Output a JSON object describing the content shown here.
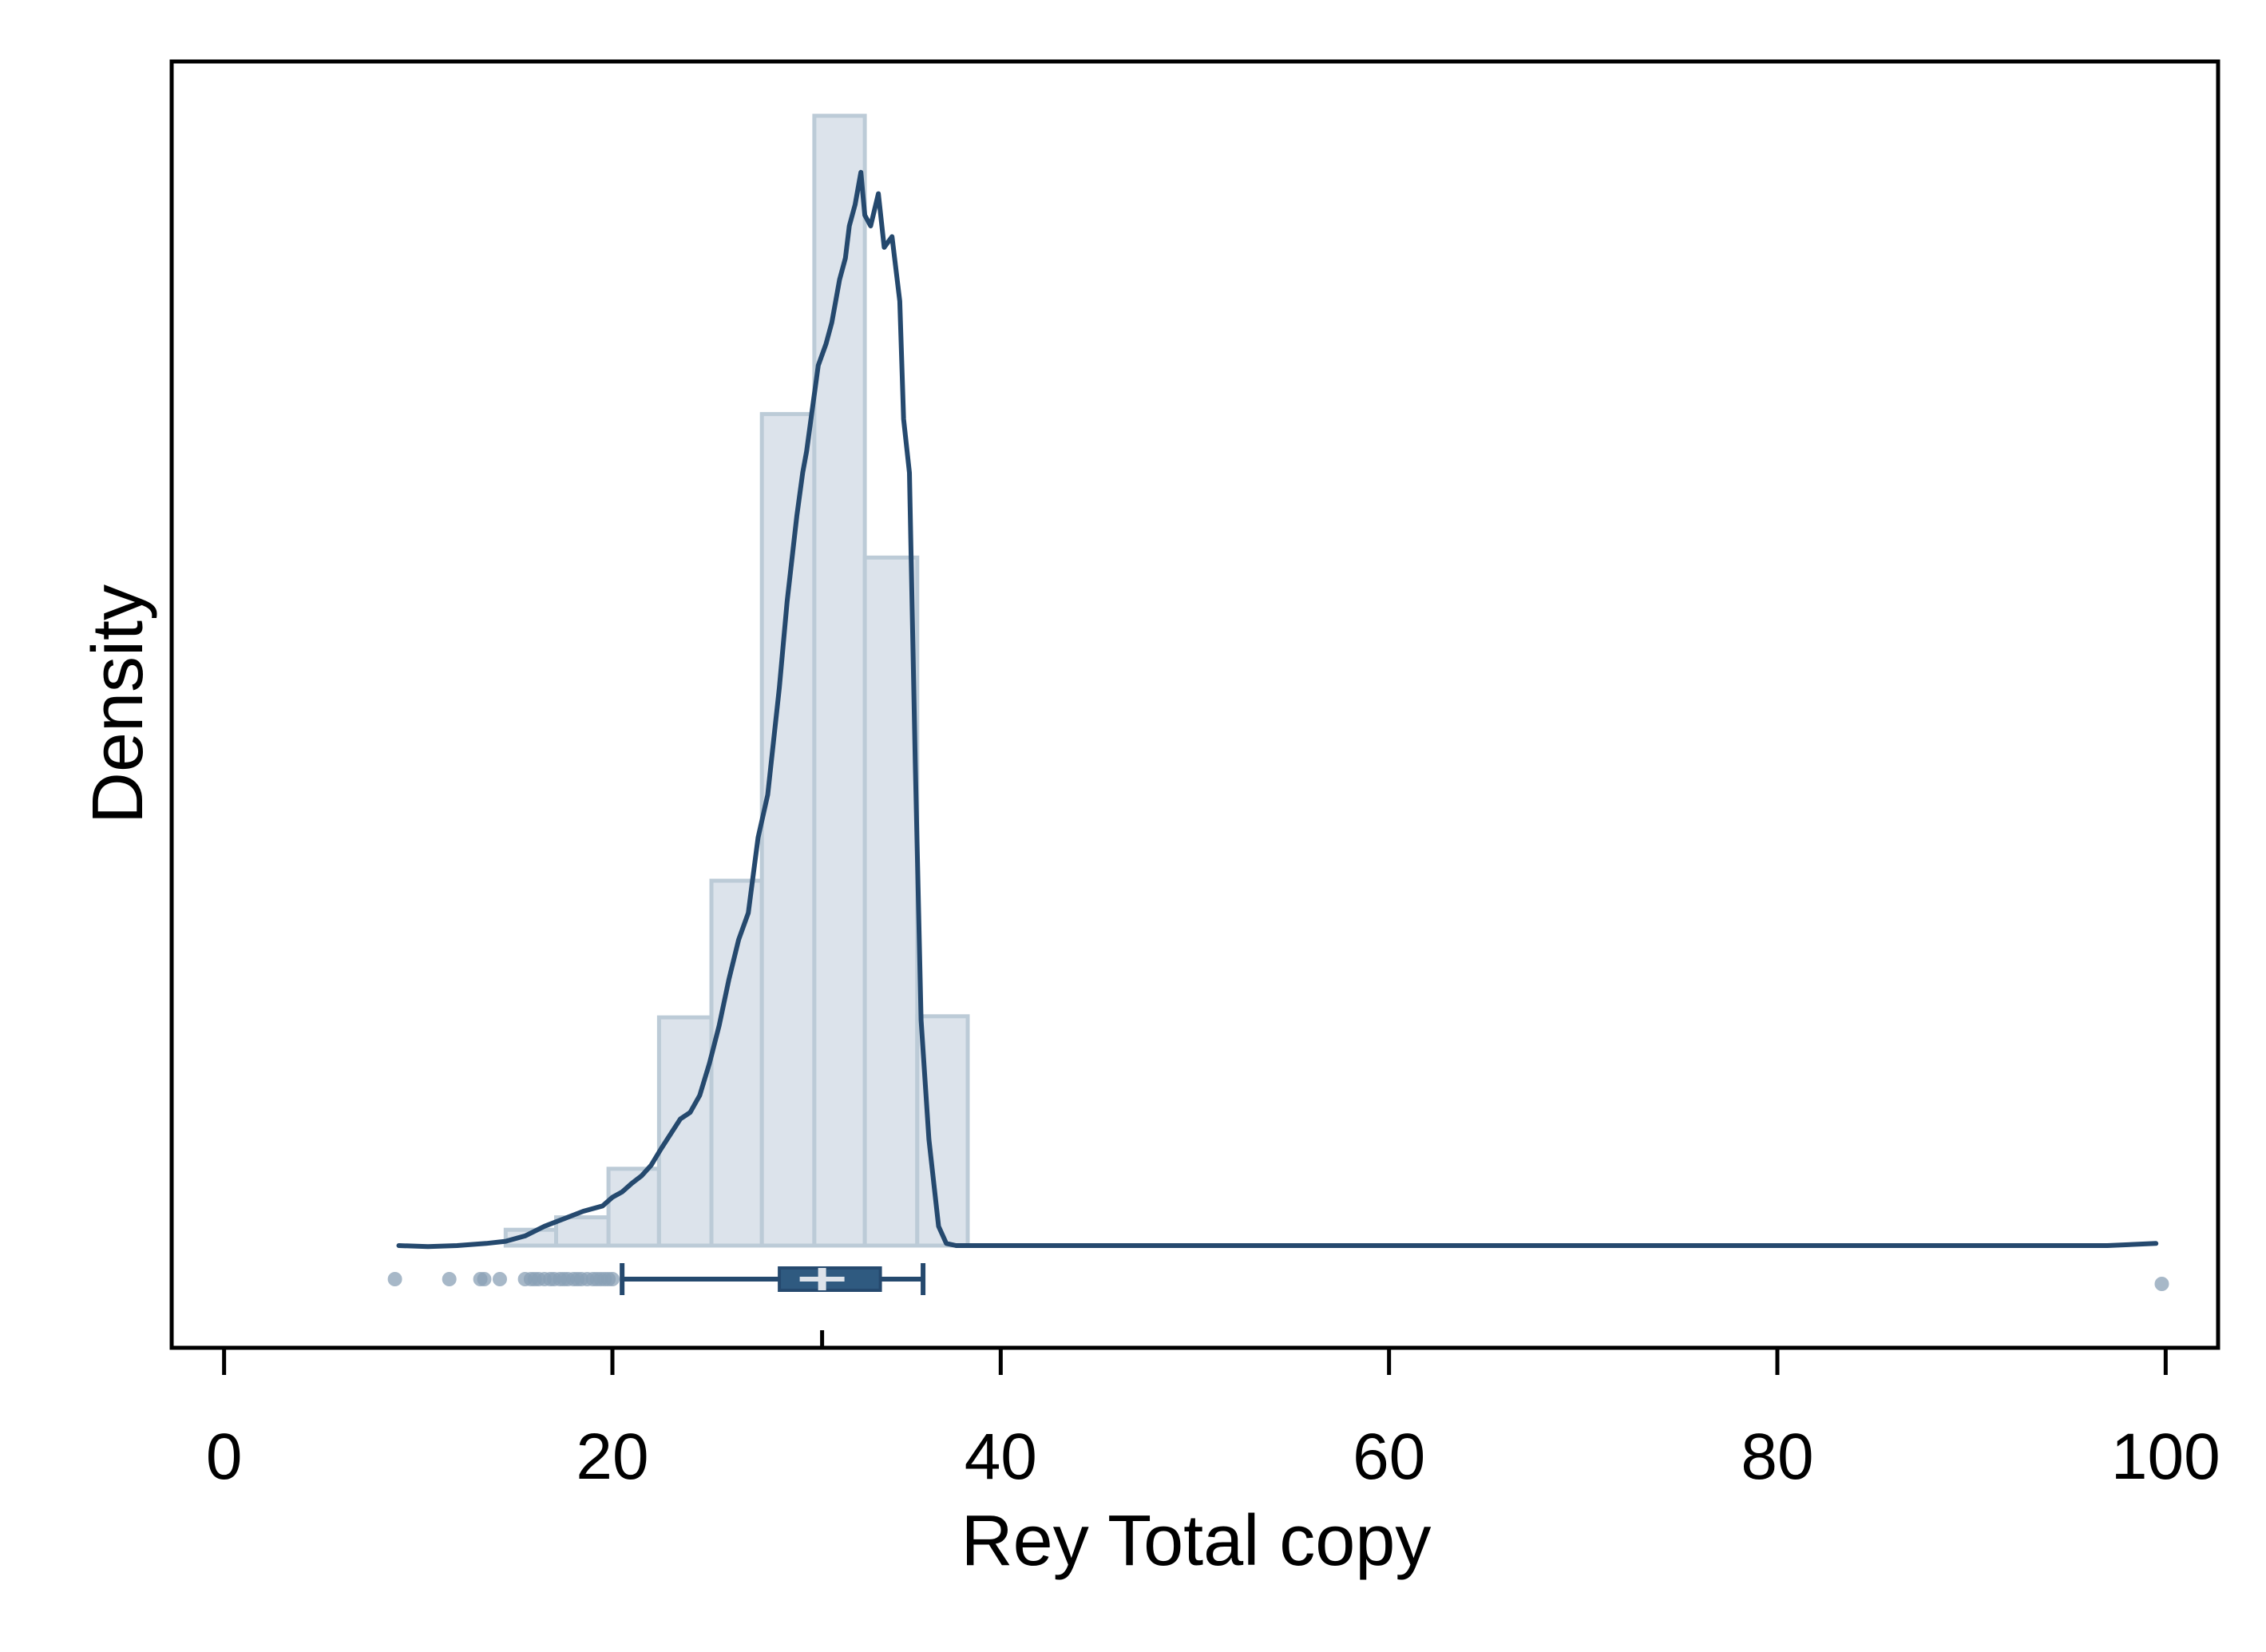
{
  "chart_data": {
    "type": "histogram",
    "xlabel": "Rey Total copy",
    "ylabel": "Density",
    "xlim": [
      -2.7,
      102.7
    ],
    "x_ticks": [
      0,
      20,
      40,
      60,
      80,
      100
    ],
    "x_tick_labels": [
      "0",
      "20",
      "40",
      "60",
      "80",
      "100"
    ],
    "y_ticks": [],
    "grid": false,
    "legend": "none",
    "colors": {
      "bar_fill": "#dce3eb",
      "bar_edge": "#bccbd7",
      "line": "#25496e",
      "box_fill": "#2f5a80",
      "median": "#dde3ea",
      "outlier": "#8aa0b5"
    },
    "histogram": {
      "bin_edges": [
        14.5,
        17.1,
        19.8,
        22.4,
        25.1,
        27.7,
        30.4,
        33.0,
        35.7,
        38.3
      ],
      "relative_heights": [
        0.014,
        0.025,
        0.068,
        0.202,
        0.323,
        0.736,
        1.0,
        0.609,
        0.203
      ]
    },
    "density_curve": {
      "x": [
        9.0,
        10.5,
        12.0,
        13.5,
        14.5,
        15.5,
        16.5,
        17.5,
        18.5,
        19.5,
        20.0,
        20.5,
        21.0,
        21.5,
        22.0,
        22.5,
        23.0,
        23.5,
        24.0,
        24.5,
        25.0,
        25.5,
        26.0,
        26.5,
        27.0,
        27.5,
        28.0,
        28.3,
        28.6,
        29.0,
        29.5,
        29.8,
        30.0,
        30.3,
        30.6,
        31.0,
        31.3,
        31.7,
        32.0,
        32.2,
        32.5,
        32.8,
        33.0,
        33.3,
        33.7,
        34.0,
        34.4,
        34.8,
        35.0,
        35.3,
        35.6,
        35.9,
        36.3,
        36.8,
        37.2,
        37.7,
        38.0,
        50.0,
        70.0,
        90.0,
        97.0,
        99.5
      ],
      "relative_y": [
        0.0,
        -0.001,
        0.0,
        0.002,
        0.004,
        0.009,
        0.018,
        0.025,
        0.032,
        0.037,
        0.045,
        0.05,
        0.058,
        0.065,
        0.075,
        0.09,
        0.104,
        0.118,
        0.124,
        0.14,
        0.17,
        0.205,
        0.248,
        0.285,
        0.31,
        0.38,
        0.42,
        0.47,
        0.52,
        0.6,
        0.68,
        0.72,
        0.74,
        0.78,
        0.82,
        0.84,
        0.86,
        0.9,
        0.92,
        0.95,
        0.97,
        1.0,
        0.96,
        0.95,
        0.98,
        0.93,
        0.94,
        0.88,
        0.77,
        0.72,
        0.45,
        0.21,
        0.099,
        0.018,
        0.002,
        0.0,
        0.0,
        0.0,
        0.0,
        0.0,
        0.0,
        0.002
      ],
      "curve_peak_vs_tallest_bar": 0.95
    },
    "boxplot": {
      "whisker_low": 20.5,
      "q1": 28.6,
      "median": 30.8,
      "q3": 33.8,
      "whisker_high": 36.0,
      "mean": 30.8,
      "outliers": [
        8.8,
        11.6,
        13.2,
        13.4,
        14.2,
        15.5,
        15.8,
        16.0,
        16.2,
        16.5,
        16.8,
        17.0,
        17.3,
        17.5,
        17.7,
        18.0,
        18.2,
        18.4,
        18.7,
        19.0,
        19.2,
        19.4,
        19.6,
        19.8,
        20.0,
        99.8
      ]
    }
  }
}
